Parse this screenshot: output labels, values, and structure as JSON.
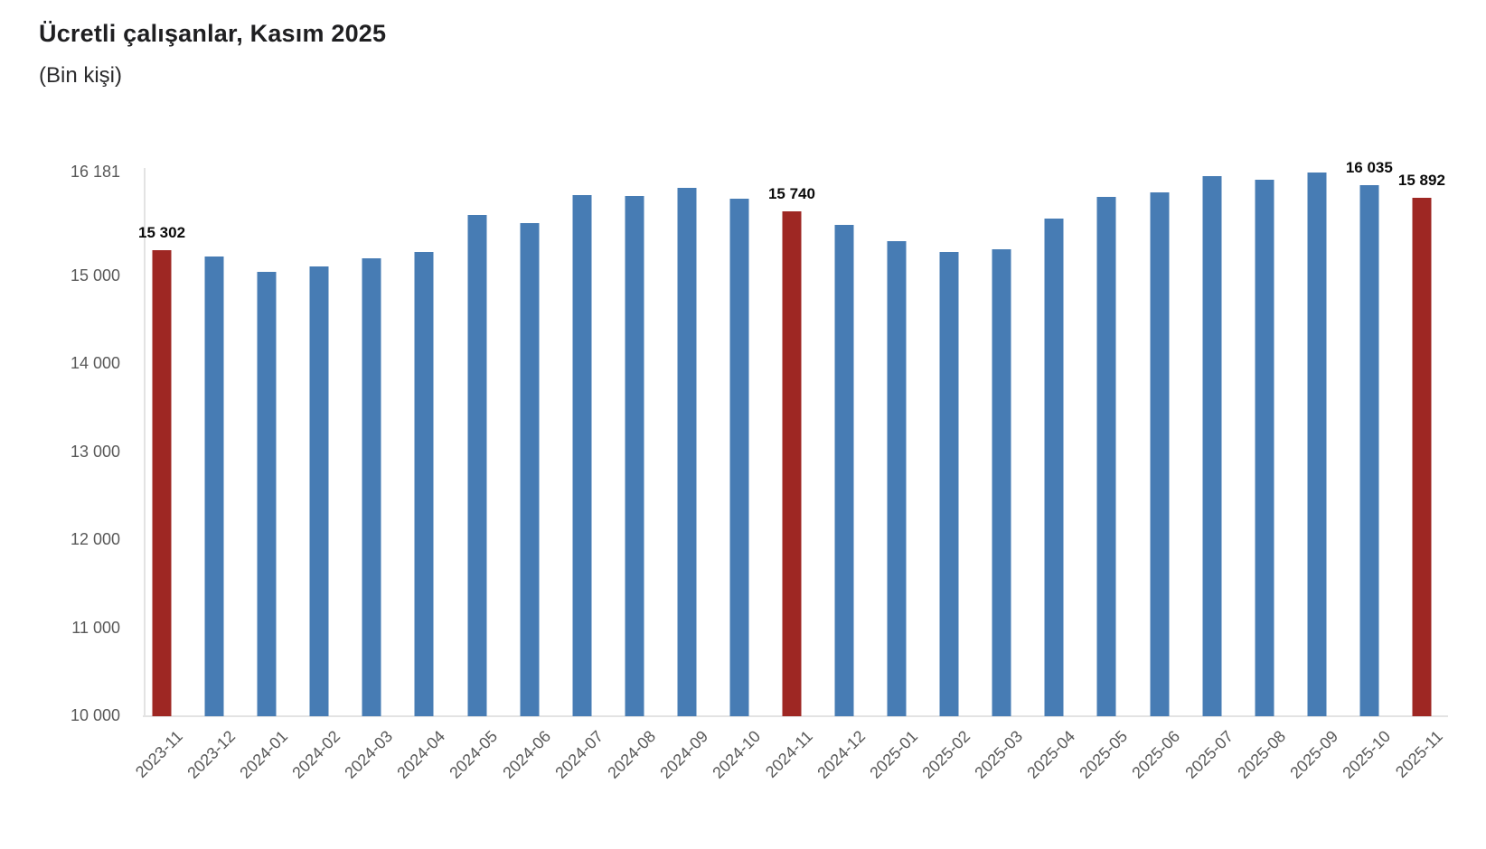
{
  "title": "Ücretli çalışanlar, Kasım 2025",
  "subtitle": "(Bin kişi)",
  "colors": {
    "bar_default": "#477CB4",
    "bar_highlight": "#9E2723",
    "axis_line": "#E3E3E3",
    "axis_text": "#595959",
    "value_label_text": "#0B0B0B"
  },
  "chart_data": {
    "type": "bar",
    "title": "Ücretli çalışanlar, Kasım 2025",
    "subtitle": "(Bin kişi)",
    "xlabel": "",
    "ylabel": "",
    "ylim": [
      10000,
      16181
    ],
    "grid": false,
    "legend": false,
    "categories": [
      "2023-11",
      "2023-12",
      "2024-01",
      "2024-02",
      "2024-03",
      "2024-04",
      "2024-05",
      "2024-06",
      "2024-07",
      "2024-08",
      "2024-09",
      "2024-10",
      "2024-11",
      "2024-12",
      "2025-01",
      "2025-02",
      "2025-03",
      "2025-04",
      "2025-05",
      "2025-06",
      "2025-07",
      "2025-08",
      "2025-09",
      "2025-10",
      "2025-11"
    ],
    "values": [
      15302,
      15230,
      15050,
      15110,
      15210,
      15280,
      15700,
      15610,
      15925,
      15915,
      16010,
      15880,
      15740,
      15590,
      15400,
      15280,
      15310,
      15660,
      15900,
      15950,
      16140,
      16100,
      16181,
      16035,
      15892
    ],
    "highlighted_categories": [
      "2023-11",
      "2024-11",
      "2025-11"
    ],
    "value_labels": {
      "2023-11": "15 302",
      "2024-11": "15 740",
      "2025-10": "16 035",
      "2025-11": "15 892"
    },
    "y_ticks": [
      {
        "value": 16181,
        "label": "16 181"
      },
      {
        "value": 15000,
        "label": "15 000"
      },
      {
        "value": 14000,
        "label": "14 000"
      },
      {
        "value": 13000,
        "label": "13 000"
      },
      {
        "value": 12000,
        "label": "12 000"
      },
      {
        "value": 11000,
        "label": "11 000"
      },
      {
        "value": 10000,
        "label": "10 000"
      }
    ]
  }
}
